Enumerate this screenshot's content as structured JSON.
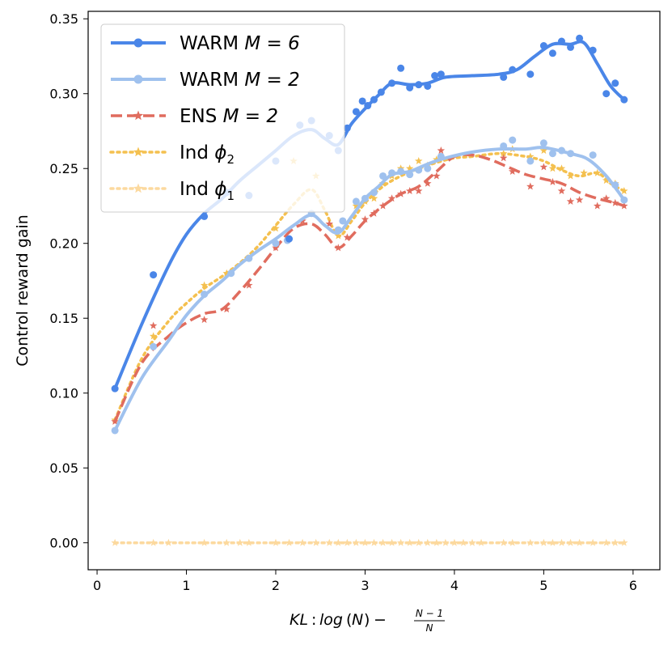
{
  "chart_data": {
    "type": "line",
    "xlabel_parts": {
      "kl": "KL",
      "colon": ":",
      "log": "log",
      "n": "N",
      "minus": "−",
      "frac_num": "N − 1",
      "frac_den": "N"
    },
    "ylabel": "Control reward gain",
    "xlim": [
      -0.1,
      6.3
    ],
    "ylim": [
      -0.018,
      0.355
    ],
    "xticks": [
      0,
      1,
      2,
      3,
      4,
      5,
      6
    ],
    "xtick_labels": [
      "0",
      "1",
      "2",
      "3",
      "4",
      "5",
      "6"
    ],
    "yticks": [
      0.0,
      0.05,
      0.1,
      0.15,
      0.2,
      0.25,
      0.3,
      0.35
    ],
    "ytick_labels": [
      "0.00",
      "0.05",
      "0.10",
      "0.15",
      "0.20",
      "0.25",
      "0.30",
      "0.35"
    ],
    "grid": false,
    "legend_position": "top-left",
    "series": [
      {
        "name_text": "WARM",
        "name_math": "M = 6",
        "color": "#4a86e8",
        "style": "solid",
        "marker": "circle",
        "points": [
          [
            0.2,
            0.103
          ],
          [
            0.63,
            0.179
          ],
          [
            1.2,
            0.218
          ],
          [
            1.45,
            0.234
          ],
          [
            1.7,
            0.232
          ],
          [
            2.0,
            0.255
          ],
          [
            2.15,
            0.203
          ],
          [
            2.27,
            0.279
          ],
          [
            2.4,
            0.282
          ],
          [
            2.6,
            0.272
          ],
          [
            2.7,
            0.262
          ],
          [
            2.8,
            0.277
          ],
          [
            2.9,
            0.288
          ],
          [
            2.97,
            0.295
          ],
          [
            3.03,
            0.292
          ],
          [
            3.1,
            0.296
          ],
          [
            3.18,
            0.301
          ],
          [
            3.3,
            0.307
          ],
          [
            3.4,
            0.317
          ],
          [
            3.5,
            0.304
          ],
          [
            3.6,
            0.306
          ],
          [
            3.7,
            0.305
          ],
          [
            3.78,
            0.312
          ],
          [
            3.85,
            0.313
          ],
          [
            4.55,
            0.311
          ],
          [
            4.65,
            0.316
          ],
          [
            4.85,
            0.313
          ],
          [
            5.0,
            0.332
          ],
          [
            5.1,
            0.327
          ],
          [
            5.2,
            0.335
          ],
          [
            5.3,
            0.331
          ],
          [
            5.4,
            0.337
          ],
          [
            5.55,
            0.329
          ],
          [
            5.7,
            0.3
          ],
          [
            5.8,
            0.307
          ],
          [
            5.9,
            0.296
          ]
        ],
        "curve": [
          [
            0.2,
            0.103
          ],
          [
            0.5,
            0.146
          ],
          [
            0.8,
            0.185
          ],
          [
            1.0,
            0.206
          ],
          [
            1.2,
            0.22
          ],
          [
            1.4,
            0.23
          ],
          [
            1.6,
            0.242
          ],
          [
            1.8,
            0.252
          ],
          [
            2.0,
            0.262
          ],
          [
            2.2,
            0.272
          ],
          [
            2.4,
            0.276
          ],
          [
            2.55,
            0.27
          ],
          [
            2.7,
            0.266
          ],
          [
            2.85,
            0.28
          ],
          [
            3.0,
            0.29
          ],
          [
            3.15,
            0.299
          ],
          [
            3.3,
            0.307
          ],
          [
            3.5,
            0.306
          ],
          [
            3.7,
            0.307
          ],
          [
            3.9,
            0.311
          ],
          [
            4.2,
            0.312
          ],
          [
            4.5,
            0.313
          ],
          [
            4.7,
            0.316
          ],
          [
            4.9,
            0.325
          ],
          [
            5.1,
            0.333
          ],
          [
            5.3,
            0.333
          ],
          [
            5.45,
            0.334
          ],
          [
            5.6,
            0.32
          ],
          [
            5.75,
            0.305
          ],
          [
            5.9,
            0.296
          ]
        ]
      },
      {
        "name_text": "WARM",
        "name_math": "M = 2",
        "color": "#9fc1ee",
        "style": "solid",
        "marker": "circle",
        "points": [
          [
            0.2,
            0.075
          ],
          [
            0.63,
            0.131
          ],
          [
            1.2,
            0.166
          ],
          [
            1.5,
            0.18
          ],
          [
            1.7,
            0.19
          ],
          [
            2.0,
            0.2
          ],
          [
            2.13,
            0.202
          ],
          [
            2.4,
            0.22
          ],
          [
            2.7,
            0.209
          ],
          [
            2.75,
            0.215
          ],
          [
            2.9,
            0.228
          ],
          [
            3.0,
            0.23
          ],
          [
            3.1,
            0.234
          ],
          [
            3.2,
            0.245
          ],
          [
            3.3,
            0.247
          ],
          [
            3.4,
            0.248
          ],
          [
            3.5,
            0.246
          ],
          [
            3.6,
            0.249
          ],
          [
            3.7,
            0.25
          ],
          [
            3.85,
            0.258
          ],
          [
            4.55,
            0.265
          ],
          [
            4.65,
            0.269
          ],
          [
            4.85,
            0.255
          ],
          [
            5.0,
            0.267
          ],
          [
            5.1,
            0.26
          ],
          [
            5.2,
            0.262
          ],
          [
            5.3,
            0.26
          ],
          [
            5.55,
            0.259
          ],
          [
            5.8,
            0.239
          ],
          [
            5.9,
            0.229
          ]
        ],
        "curve": [
          [
            0.2,
            0.075
          ],
          [
            0.5,
            0.11
          ],
          [
            0.8,
            0.135
          ],
          [
            1.0,
            0.152
          ],
          [
            1.2,
            0.165
          ],
          [
            1.4,
            0.175
          ],
          [
            1.6,
            0.186
          ],
          [
            1.8,
            0.195
          ],
          [
            2.0,
            0.203
          ],
          [
            2.2,
            0.212
          ],
          [
            2.4,
            0.219
          ],
          [
            2.55,
            0.212
          ],
          [
            2.7,
            0.207
          ],
          [
            2.85,
            0.218
          ],
          [
            3.0,
            0.23
          ],
          [
            3.15,
            0.238
          ],
          [
            3.3,
            0.246
          ],
          [
            3.5,
            0.248
          ],
          [
            3.7,
            0.253
          ],
          [
            3.9,
            0.257
          ],
          [
            4.2,
            0.261
          ],
          [
            4.5,
            0.263
          ],
          [
            4.8,
            0.263
          ],
          [
            5.0,
            0.264
          ],
          [
            5.3,
            0.26
          ],
          [
            5.5,
            0.256
          ],
          [
            5.7,
            0.245
          ],
          [
            5.9,
            0.229
          ]
        ]
      },
      {
        "name_text": "ENS",
        "name_math": "M = 2",
        "color": "#e06c5e",
        "style": "dashed",
        "marker": "star",
        "points": [
          [
            0.2,
            0.081
          ],
          [
            0.63,
            0.145
          ],
          [
            1.2,
            0.149
          ],
          [
            1.45,
            0.156
          ],
          [
            1.7,
            0.172
          ],
          [
            2.0,
            0.197
          ],
          [
            2.3,
            0.215
          ],
          [
            2.6,
            0.213
          ],
          [
            2.7,
            0.197
          ],
          [
            2.8,
            0.204
          ],
          [
            3.0,
            0.216
          ],
          [
            3.1,
            0.22
          ],
          [
            3.2,
            0.225
          ],
          [
            3.3,
            0.23
          ],
          [
            3.4,
            0.233
          ],
          [
            3.5,
            0.235
          ],
          [
            3.6,
            0.235
          ],
          [
            3.7,
            0.24
          ],
          [
            3.8,
            0.245
          ],
          [
            3.85,
            0.262
          ],
          [
            4.55,
            0.257
          ],
          [
            4.65,
            0.248
          ],
          [
            4.85,
            0.238
          ],
          [
            5.0,
            0.251
          ],
          [
            5.1,
            0.241
          ],
          [
            5.2,
            0.235
          ],
          [
            5.3,
            0.228
          ],
          [
            5.4,
            0.229
          ],
          [
            5.6,
            0.225
          ],
          [
            5.7,
            0.23
          ],
          [
            5.8,
            0.227
          ],
          [
            5.9,
            0.225
          ]
        ],
        "curve": [
          [
            0.2,
            0.081
          ],
          [
            0.5,
            0.12
          ],
          [
            0.8,
            0.138
          ],
          [
            1.0,
            0.147
          ],
          [
            1.2,
            0.153
          ],
          [
            1.4,
            0.156
          ],
          [
            1.6,
            0.168
          ],
          [
            1.8,
            0.182
          ],
          [
            2.0,
            0.197
          ],
          [
            2.2,
            0.21
          ],
          [
            2.4,
            0.213
          ],
          [
            2.55,
            0.206
          ],
          [
            2.7,
            0.197
          ],
          [
            2.85,
            0.205
          ],
          [
            3.0,
            0.215
          ],
          [
            3.2,
            0.225
          ],
          [
            3.4,
            0.233
          ],
          [
            3.6,
            0.238
          ],
          [
            3.8,
            0.248
          ],
          [
            4.0,
            0.258
          ],
          [
            4.2,
            0.259
          ],
          [
            4.4,
            0.256
          ],
          [
            4.6,
            0.251
          ],
          [
            4.8,
            0.246
          ],
          [
            5.0,
            0.243
          ],
          [
            5.2,
            0.24
          ],
          [
            5.4,
            0.234
          ],
          [
            5.6,
            0.23
          ],
          [
            5.8,
            0.227
          ],
          [
            5.9,
            0.225
          ]
        ]
      },
      {
        "name_text": "Ind",
        "name_math": "ϕ",
        "name_sub": "2",
        "color": "#f4c04f",
        "style": "dotted",
        "marker": "star",
        "points": [
          [
            0.2,
            0.082
          ],
          [
            0.63,
            0.138
          ],
          [
            1.2,
            0.172
          ],
          [
            1.45,
            0.18
          ],
          [
            1.7,
            0.19
          ],
          [
            2.0,
            0.21
          ],
          [
            2.2,
            0.255
          ],
          [
            2.45,
            0.245
          ],
          [
            2.7,
            0.205
          ],
          [
            2.9,
            0.225
          ],
          [
            3.0,
            0.228
          ],
          [
            3.1,
            0.23
          ],
          [
            3.2,
            0.24
          ],
          [
            3.3,
            0.245
          ],
          [
            3.4,
            0.25
          ],
          [
            3.5,
            0.25
          ],
          [
            3.6,
            0.255
          ],
          [
            3.7,
            0.252
          ],
          [
            3.8,
            0.256
          ],
          [
            4.55,
            0.26
          ],
          [
            4.65,
            0.263
          ],
          [
            4.85,
            0.258
          ],
          [
            5.0,
            0.262
          ],
          [
            5.1,
            0.25
          ],
          [
            5.2,
            0.25
          ],
          [
            5.3,
            0.245
          ],
          [
            5.45,
            0.247
          ],
          [
            5.6,
            0.247
          ],
          [
            5.7,
            0.242
          ],
          [
            5.8,
            0.24
          ],
          [
            5.9,
            0.235
          ]
        ],
        "curve": [
          [
            0.2,
            0.082
          ],
          [
            0.5,
            0.123
          ],
          [
            0.8,
            0.148
          ],
          [
            1.0,
            0.16
          ],
          [
            1.2,
            0.17
          ],
          [
            1.4,
            0.178
          ],
          [
            1.6,
            0.187
          ],
          [
            1.8,
            0.198
          ],
          [
            2.0,
            0.212
          ],
          [
            2.2,
            0.226
          ],
          [
            2.4,
            0.236
          ],
          [
            2.55,
            0.222
          ],
          [
            2.7,
            0.205
          ],
          [
            2.85,
            0.215
          ],
          [
            3.0,
            0.227
          ],
          [
            3.2,
            0.238
          ],
          [
            3.4,
            0.245
          ],
          [
            3.6,
            0.25
          ],
          [
            3.8,
            0.254
          ],
          [
            4.0,
            0.257
          ],
          [
            4.2,
            0.258
          ],
          [
            4.5,
            0.26
          ],
          [
            4.8,
            0.258
          ],
          [
            5.0,
            0.255
          ],
          [
            5.2,
            0.249
          ],
          [
            5.4,
            0.245
          ],
          [
            5.6,
            0.247
          ],
          [
            5.75,
            0.24
          ],
          [
            5.9,
            0.235
          ]
        ]
      },
      {
        "name_text": "Ind",
        "name_math": "ϕ",
        "name_sub": "1",
        "color": "#fcd99e",
        "style": "dotted",
        "marker": "star",
        "points": [
          [
            0.2,
            0.0
          ],
          [
            0.63,
            0.0
          ],
          [
            0.8,
            0.0
          ],
          [
            1.2,
            0.0
          ],
          [
            1.45,
            0.0
          ],
          [
            1.6,
            0.0
          ],
          [
            1.7,
            0.0
          ],
          [
            2.0,
            0.0
          ],
          [
            2.15,
            0.0
          ],
          [
            2.3,
            0.0
          ],
          [
            2.45,
            0.0
          ],
          [
            2.6,
            0.0
          ],
          [
            2.7,
            0.0
          ],
          [
            2.8,
            0.0
          ],
          [
            2.9,
            0.0
          ],
          [
            3.0,
            0.0
          ],
          [
            3.1,
            0.0
          ],
          [
            3.2,
            0.0
          ],
          [
            3.3,
            0.0
          ],
          [
            3.4,
            0.0
          ],
          [
            3.5,
            0.0
          ],
          [
            3.6,
            0.0
          ],
          [
            3.7,
            0.0
          ],
          [
            3.8,
            0.0
          ],
          [
            3.9,
            0.0
          ],
          [
            4.0,
            0.0
          ],
          [
            4.1,
            0.0
          ],
          [
            4.2,
            0.0
          ],
          [
            4.3,
            0.0
          ],
          [
            4.55,
            0.0
          ],
          [
            4.65,
            0.0
          ],
          [
            4.85,
            0.0
          ],
          [
            5.0,
            0.0
          ],
          [
            5.1,
            0.0
          ],
          [
            5.2,
            0.0
          ],
          [
            5.3,
            0.0
          ],
          [
            5.4,
            0.0
          ],
          [
            5.55,
            0.0
          ],
          [
            5.7,
            0.0
          ],
          [
            5.8,
            0.0
          ],
          [
            5.9,
            0.0
          ]
        ],
        "curve": [
          [
            0.2,
            0.0
          ],
          [
            5.9,
            0.0
          ]
        ]
      }
    ]
  }
}
